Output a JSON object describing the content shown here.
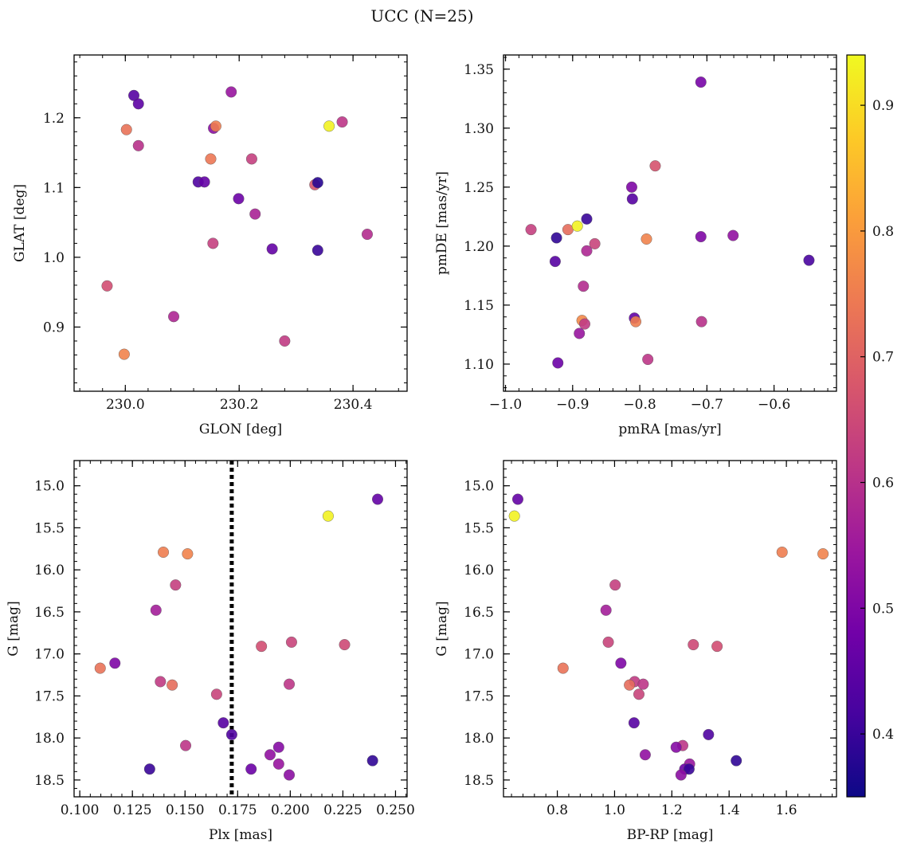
{
  "figure": {
    "title": "UCC (N=25)"
  },
  "chart_data": [
    {
      "type": "scatter",
      "xlabel": "GLON [deg]",
      "ylabel": "GLAT [deg]",
      "xlim": [
        229.91,
        230.495
      ],
      "ylim": [
        0.808,
        1.29
      ],
      "xticks": [
        230.0,
        230.2,
        230.4
      ],
      "xtick_labels": [
        "230.0",
        "230.2",
        "230.4"
      ],
      "yticks": [
        0.9,
        1.0,
        1.1,
        1.2
      ],
      "ytick_labels": [
        "0.9",
        "1.0",
        "1.1",
        "1.2"
      ],
      "points": [
        {
          "x": 230.015,
          "y": 1.232,
          "c": 0.44
        },
        {
          "x": 230.023,
          "y": 1.22,
          "c": 0.45
        },
        {
          "x": 230.186,
          "y": 1.237,
          "c": 0.54
        },
        {
          "x": 230.002,
          "y": 1.183,
          "c": 0.73
        },
        {
          "x": 230.155,
          "y": 1.185,
          "c": 0.52
        },
        {
          "x": 230.159,
          "y": 1.188,
          "c": 0.75
        },
        {
          "x": 230.358,
          "y": 1.188,
          "c": 0.93
        },
        {
          "x": 230.381,
          "y": 1.194,
          "c": 0.61
        },
        {
          "x": 230.023,
          "y": 1.16,
          "c": 0.6
        },
        {
          "x": 230.15,
          "y": 1.141,
          "c": 0.74
        },
        {
          "x": 230.222,
          "y": 1.141,
          "c": 0.63
        },
        {
          "x": 230.128,
          "y": 1.108,
          "c": 0.43
        },
        {
          "x": 230.139,
          "y": 1.108,
          "c": 0.46
        },
        {
          "x": 230.333,
          "y": 1.104,
          "c": 0.67
        },
        {
          "x": 230.338,
          "y": 1.107,
          "c": 0.38
        },
        {
          "x": 230.199,
          "y": 1.084,
          "c": 0.47
        },
        {
          "x": 230.228,
          "y": 1.062,
          "c": 0.57
        },
        {
          "x": 230.425,
          "y": 1.033,
          "c": 0.59
        },
        {
          "x": 230.154,
          "y": 1.02,
          "c": 0.63
        },
        {
          "x": 230.258,
          "y": 1.012,
          "c": 0.46
        },
        {
          "x": 230.338,
          "y": 1.01,
          "c": 0.4
        },
        {
          "x": 229.968,
          "y": 0.959,
          "c": 0.66
        },
        {
          "x": 230.085,
          "y": 0.915,
          "c": 0.58
        },
        {
          "x": 230.28,
          "y": 0.88,
          "c": 0.62
        },
        {
          "x": 229.998,
          "y": 0.861,
          "c": 0.76
        }
      ]
    },
    {
      "type": "scatter",
      "xlabel": "pmRA [mas/yr]",
      "ylabel": "pmDE [mas/yr]",
      "xlim": [
        -1.003,
        -0.507
      ],
      "ylim": [
        1.077,
        1.362
      ],
      "xticks": [
        -1.0,
        -0.9,
        -0.8,
        -0.7,
        -0.6
      ],
      "xtick_labels": [
        "−1.0",
        "−0.9",
        "−0.8",
        "−0.7",
        "−0.6"
      ],
      "yticks": [
        1.1,
        1.15,
        1.2,
        1.25,
        1.3,
        1.35
      ],
      "ytick_labels": [
        "1.10",
        "1.15",
        "1.20",
        "1.25",
        "1.30",
        "1.35"
      ],
      "points": [
        {
          "x": -0.709,
          "y": 1.339,
          "c": 0.49
        },
        {
          "x": -0.777,
          "y": 1.268,
          "c": 0.67
        },
        {
          "x": -0.812,
          "y": 1.25,
          "c": 0.5
        },
        {
          "x": -0.811,
          "y": 1.24,
          "c": 0.44
        },
        {
          "x": -0.879,
          "y": 1.223,
          "c": 0.4
        },
        {
          "x": -0.962,
          "y": 1.214,
          "c": 0.63
        },
        {
          "x": -0.907,
          "y": 1.214,
          "c": 0.72
        },
        {
          "x": -0.893,
          "y": 1.217,
          "c": 0.93
        },
        {
          "x": -0.924,
          "y": 1.207,
          "c": 0.39
        },
        {
          "x": -0.867,
          "y": 1.202,
          "c": 0.64
        },
        {
          "x": -0.879,
          "y": 1.196,
          "c": 0.58
        },
        {
          "x": -0.79,
          "y": 1.206,
          "c": 0.76
        },
        {
          "x": -0.709,
          "y": 1.208,
          "c": 0.5
        },
        {
          "x": -0.661,
          "y": 1.209,
          "c": 0.53
        },
        {
          "x": -0.548,
          "y": 1.188,
          "c": 0.42
        },
        {
          "x": -0.926,
          "y": 1.187,
          "c": 0.44
        },
        {
          "x": -0.884,
          "y": 1.166,
          "c": 0.59
        },
        {
          "x": -0.808,
          "y": 1.139,
          "c": 0.46
        },
        {
          "x": -0.886,
          "y": 1.137,
          "c": 0.77
        },
        {
          "x": -0.882,
          "y": 1.134,
          "c": 0.62
        },
        {
          "x": -0.806,
          "y": 1.136,
          "c": 0.75
        },
        {
          "x": -0.708,
          "y": 1.136,
          "c": 0.6
        },
        {
          "x": -0.89,
          "y": 1.126,
          "c": 0.54
        },
        {
          "x": -0.788,
          "y": 1.104,
          "c": 0.61
        },
        {
          "x": -0.922,
          "y": 1.101,
          "c": 0.47
        }
      ]
    },
    {
      "type": "scatter",
      "xlabel": "Plx [mas]",
      "ylabel": "G [mag]",
      "xlim": [
        0.0973,
        0.2555
      ],
      "ylim": [
        18.7,
        14.7
      ],
      "xticks": [
        0.1,
        0.125,
        0.15,
        0.175,
        0.2,
        0.225,
        0.25
      ],
      "xtick_labels": [
        "0.100",
        "0.125",
        "0.150",
        "0.175",
        "0.200",
        "0.225",
        "0.250"
      ],
      "yticks": [
        15.0,
        15.5,
        16.0,
        16.5,
        17.0,
        17.5,
        18.0,
        18.5
      ],
      "ytick_labels": [
        "15.0",
        "15.5",
        "16.0",
        "16.5",
        "17.0",
        "17.5",
        "18.0",
        "18.5"
      ],
      "vline": {
        "x": 0.1722,
        "style": "dotted"
      },
      "points": [
        {
          "x": 0.2415,
          "y": 15.16,
          "c": 0.46
        },
        {
          "x": 0.218,
          "y": 15.36,
          "c": 0.93
        },
        {
          "x": 0.1397,
          "y": 15.79,
          "c": 0.75
        },
        {
          "x": 0.1512,
          "y": 15.81,
          "c": 0.76
        },
        {
          "x": 0.1455,
          "y": 16.18,
          "c": 0.63
        },
        {
          "x": 0.1362,
          "y": 16.48,
          "c": 0.56
        },
        {
          "x": 0.2006,
          "y": 16.86,
          "c": 0.64
        },
        {
          "x": 0.1863,
          "y": 16.91,
          "c": 0.66
        },
        {
          "x": 0.2258,
          "y": 16.89,
          "c": 0.65
        },
        {
          "x": 0.1097,
          "y": 17.17,
          "c": 0.73
        },
        {
          "x": 0.1167,
          "y": 17.11,
          "c": 0.5
        },
        {
          "x": 0.1383,
          "y": 17.33,
          "c": 0.62
        },
        {
          "x": 0.1439,
          "y": 17.37,
          "c": 0.72
        },
        {
          "x": 0.1995,
          "y": 17.36,
          "c": 0.61
        },
        {
          "x": 0.165,
          "y": 17.48,
          "c": 0.64
        },
        {
          "x": 0.1682,
          "y": 17.82,
          "c": 0.44
        },
        {
          "x": 0.1722,
          "y": 17.96,
          "c": 0.43
        },
        {
          "x": 0.1503,
          "y": 18.09,
          "c": 0.61
        },
        {
          "x": 0.1945,
          "y": 18.11,
          "c": 0.51
        },
        {
          "x": 0.1904,
          "y": 18.2,
          "c": 0.53
        },
        {
          "x": 0.1945,
          "y": 18.31,
          "c": 0.54
        },
        {
          "x": 0.1814,
          "y": 18.37,
          "c": 0.47
        },
        {
          "x": 0.1332,
          "y": 18.37,
          "c": 0.4
        },
        {
          "x": 0.2391,
          "y": 18.27,
          "c": 0.39
        },
        {
          "x": 0.1995,
          "y": 18.44,
          "c": 0.52
        }
      ]
    },
    {
      "type": "scatter",
      "xlabel": "BP-RP [mag]",
      "ylabel": "G [mag]",
      "xlim": [
        0.612,
        1.775
      ],
      "ylim": [
        18.7,
        14.7
      ],
      "xticks": [
        0.8,
        1.0,
        1.2,
        1.4,
        1.6
      ],
      "xtick_labels": [
        "0.8",
        "1.0",
        "1.2",
        "1.4",
        "1.6"
      ],
      "yticks": [
        15.0,
        15.5,
        16.0,
        16.5,
        17.0,
        17.5,
        18.0,
        18.5
      ],
      "ytick_labels": [
        "15.0",
        "15.5",
        "16.0",
        "16.5",
        "17.0",
        "17.5",
        "18.0",
        "18.5"
      ],
      "points": [
        {
          "x": 0.662,
          "y": 15.16,
          "c": 0.46
        },
        {
          "x": 0.65,
          "y": 15.36,
          "c": 0.93
        },
        {
          "x": 1.585,
          "y": 15.79,
          "c": 0.75
        },
        {
          "x": 1.728,
          "y": 15.81,
          "c": 0.76
        },
        {
          "x": 1.002,
          "y": 16.18,
          "c": 0.63
        },
        {
          "x": 0.97,
          "y": 16.48,
          "c": 0.56
        },
        {
          "x": 0.978,
          "y": 16.86,
          "c": 0.64
        },
        {
          "x": 1.275,
          "y": 16.89,
          "c": 0.65
        },
        {
          "x": 1.358,
          "y": 16.91,
          "c": 0.66
        },
        {
          "x": 0.82,
          "y": 17.17,
          "c": 0.73
        },
        {
          "x": 1.022,
          "y": 17.11,
          "c": 0.5
        },
        {
          "x": 1.07,
          "y": 17.33,
          "c": 0.62
        },
        {
          "x": 1.052,
          "y": 17.37,
          "c": 0.72
        },
        {
          "x": 1.1,
          "y": 17.36,
          "c": 0.61
        },
        {
          "x": 1.085,
          "y": 17.48,
          "c": 0.64
        },
        {
          "x": 1.068,
          "y": 17.82,
          "c": 0.44
        },
        {
          "x": 1.328,
          "y": 17.96,
          "c": 0.43
        },
        {
          "x": 1.238,
          "y": 18.09,
          "c": 0.61
        },
        {
          "x": 1.215,
          "y": 18.11,
          "c": 0.51
        },
        {
          "x": 1.107,
          "y": 18.2,
          "c": 0.53
        },
        {
          "x": 1.262,
          "y": 18.31,
          "c": 0.54
        },
        {
          "x": 1.245,
          "y": 18.37,
          "c": 0.47
        },
        {
          "x": 1.26,
          "y": 18.37,
          "c": 0.4
        },
        {
          "x": 1.425,
          "y": 18.27,
          "c": 0.39
        },
        {
          "x": 1.232,
          "y": 18.44,
          "c": 0.52
        }
      ]
    }
  ],
  "colorbar": {
    "cmap": "plasma",
    "range": [
      0.35,
      0.94
    ],
    "ticks": [
      0.4,
      0.5,
      0.6,
      0.7,
      0.8,
      0.9
    ],
    "tick_labels": [
      "0.4",
      "0.5",
      "0.6",
      "0.7",
      "0.8",
      "0.9"
    ],
    "colors": [
      "#0d0887",
      "#46039f",
      "#7201a8",
      "#9c179e",
      "#bd3786",
      "#d8576b",
      "#ed7953",
      "#fb9f3a",
      "#fdca26",
      "#f0f921"
    ]
  }
}
